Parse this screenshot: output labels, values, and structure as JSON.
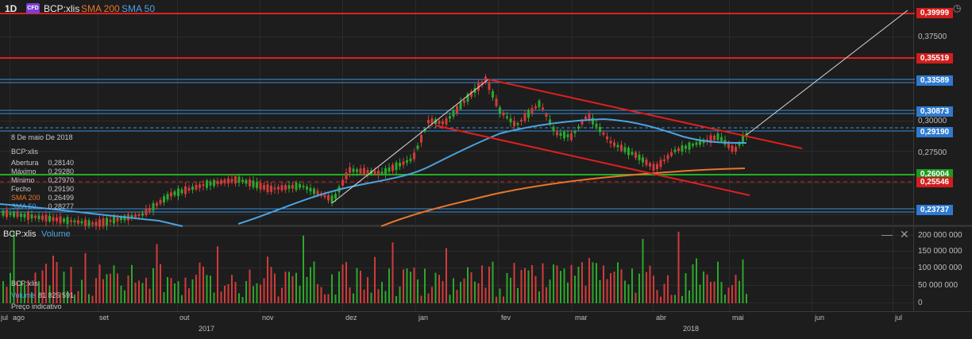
{
  "header": {
    "timeframe": "1D",
    "cfd_badge": "CFD",
    "symbol": "BCP:xlis",
    "sma200_label": "SMA 200",
    "sma50_label": "SMA 50"
  },
  "colors": {
    "background": "#1d1d1d",
    "up": "#2ba82b",
    "down": "#d23a3a",
    "sma50": "#4ba3e3",
    "sma200": "#e8762c",
    "red_line": "#e01f1f",
    "blue_line": "#3a8ed6",
    "green_line": "#22b022"
  },
  "tooltip": {
    "date": "8 De maio De 2018",
    "symbol": "BCP:xlis",
    "rows": [
      {
        "label": "Abertura",
        "value": "0,28140"
      },
      {
        "label": "Máximo",
        "value": "0,29280"
      },
      {
        "label": "Mínimo",
        "value": "0,27970"
      },
      {
        "label": "Fecho",
        "value": "0,29190"
      },
      {
        "label": "SMA 200",
        "value": "0,26499"
      },
      {
        "label": "SMA 50",
        "value": "0,28277"
      }
    ]
  },
  "price_axis": {
    "ticks": [
      "0,37500",
      "0,30000",
      "0,27500"
    ],
    "levels": [
      {
        "label": "0,39999",
        "value": 0.39999,
        "style": "red"
      },
      {
        "label": "0,35519",
        "value": 0.35519,
        "style": "red"
      },
      {
        "label": "0,33589",
        "value": 0.33589,
        "style": "blue"
      },
      {
        "label": "0,30873",
        "value": 0.30873,
        "style": "blue"
      },
      {
        "label": "0,29190",
        "value": 0.2919,
        "style": "blue"
      },
      {
        "label": "0,26004",
        "value": 0.26004,
        "style": "green"
      },
      {
        "label": "0,25546",
        "value": 0.25546,
        "style": "red"
      },
      {
        "label": "0,23737",
        "value": 0.23737,
        "style": "blue"
      }
    ]
  },
  "volume_panel": {
    "symbol": "BCP:xlis",
    "title": "Volume",
    "legend_symbol": "BCP:xlis",
    "legend_label": "Volume",
    "legend_value": "81 825 591",
    "legend_note": "Preço indicativo",
    "axis_ticks": [
      "200 000 000",
      "150 000 000",
      "100 000 000",
      "50 000 000",
      "0"
    ]
  },
  "time_axis": {
    "months": [
      "jul",
      "ago",
      "set",
      "out",
      "nov",
      "dez",
      "jan",
      "fev",
      "mar",
      "abr",
      "mai",
      "jun",
      "jul"
    ],
    "years": [
      "2017",
      "2018"
    ]
  },
  "icons": {
    "clock": "clock-icon",
    "minimize": "minimize-icon",
    "close": "close-icon"
  }
}
